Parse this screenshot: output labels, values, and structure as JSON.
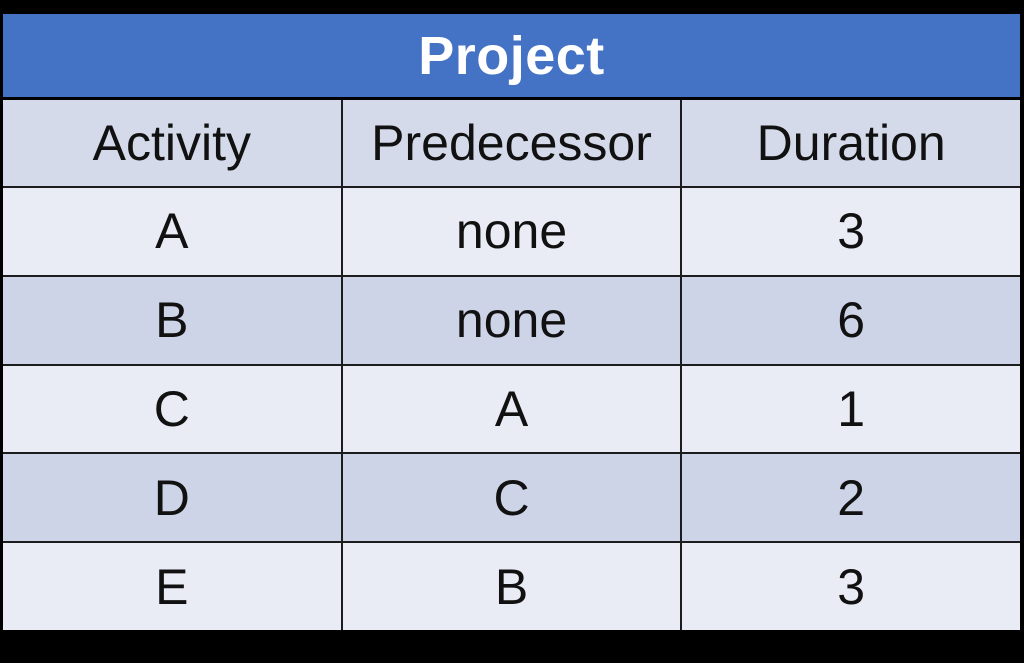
{
  "table": {
    "title": "Project"
  },
  "chart_data": {
    "type": "table",
    "title": "Project",
    "columns": [
      "Activity",
      "Predecessor",
      "Duration"
    ],
    "rows": [
      [
        "A",
        "none",
        "3"
      ],
      [
        "B",
        "none",
        "6"
      ],
      [
        "C",
        "A",
        "1"
      ],
      [
        "D",
        "C",
        "2"
      ],
      [
        "E",
        "B",
        "3"
      ]
    ],
    "layout": {
      "banding": "alternating rows light/dark starting light",
      "title_row_merged": true,
      "column_widths": "equal thirds"
    }
  },
  "colors": {
    "canvas_bg": "#000000",
    "title_bg": "#4472C4",
    "title_text": "#FFFFFF",
    "header_bg": "#D4DAEA",
    "row_light": "#E9EBF5",
    "row_dark": "#CED4E8",
    "grid_line": "#1C1C1E",
    "cell_text": "#111111"
  }
}
